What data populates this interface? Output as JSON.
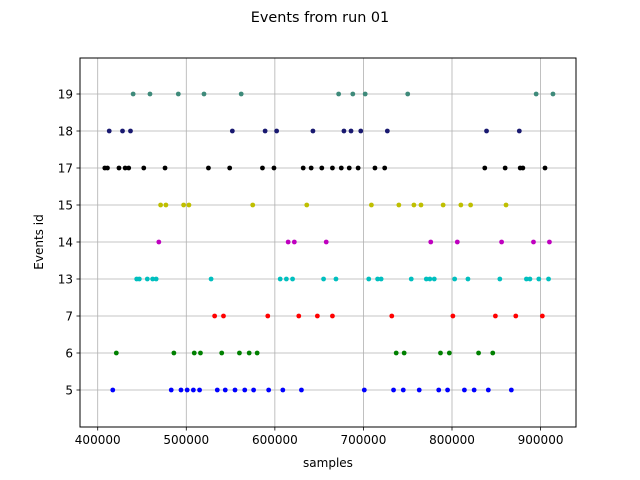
{
  "chart_data": {
    "type": "scatter",
    "title": "Events from run 01",
    "xlabel": "samples",
    "ylabel": "Events id",
    "xlim": [
      380000,
      940000
    ],
    "x_ticks": [
      400000,
      500000,
      600000,
      700000,
      800000,
      900000
    ],
    "x_tick_labels": [
      "400000",
      "500000",
      "600000",
      "700000",
      "800000",
      "900000"
    ],
    "categories": [
      "5",
      "6",
      "7",
      "13",
      "14",
      "15",
      "17",
      "18",
      "19"
    ],
    "grid": true,
    "series": [
      {
        "color": "#0000ff",
        "y": "5",
        "x": [
          417000,
          483000,
          494000,
          501000,
          508000,
          515000,
          535000,
          544000,
          555000,
          566000,
          576000,
          593000,
          609000,
          630000,
          701000,
          734000,
          745000,
          763000,
          785000,
          795000,
          814000,
          825000,
          841000,
          867000
        ]
      },
      {
        "color": "#008000",
        "y": "6",
        "x": [
          421000,
          486000,
          509000,
          516000,
          540000,
          560000,
          571000,
          580000,
          737000,
          746000,
          787000,
          797000,
          830000,
          846000
        ]
      },
      {
        "color": "#ff0000",
        "y": "7",
        "x": [
          532000,
          542000,
          592000,
          627000,
          648000,
          665000,
          732000,
          801000,
          849000,
          872000,
          902000
        ]
      },
      {
        "color": "#00bfbf",
        "y": "13",
        "x": [
          444000,
          447000,
          456000,
          462000,
          466000,
          528000,
          606000,
          613000,
          620000,
          655000,
          669000,
          706000,
          716000,
          720000,
          754000,
          771000,
          775000,
          780000,
          803000,
          818000,
          854000,
          884000,
          888000,
          898000,
          909000
        ]
      },
      {
        "color": "#bf00bf",
        "y": "14",
        "x": [
          469000,
          615000,
          622000,
          658000,
          776000,
          806000,
          856000,
          892000,
          910000
        ]
      },
      {
        "color": "#bfbf00",
        "y": "15",
        "x": [
          471000,
          477000,
          497000,
          503000,
          575000,
          636000,
          709000,
          740000,
          757000,
          765000,
          790000,
          810000,
          821000,
          861000
        ]
      },
      {
        "color": "#000000",
        "y": "17",
        "x": [
          408000,
          411000,
          424000,
          431000,
          435000,
          452000,
          476000,
          525000,
          549000,
          586000,
          599000,
          632000,
          641000,
          653000,
          665000,
          675000,
          684000,
          694000,
          713000,
          724000,
          837000,
          860000,
          877000,
          880000,
          905000
        ]
      },
      {
        "color": "#191970",
        "y": "18",
        "x": [
          413000,
          428000,
          437000,
          552000,
          589000,
          602000,
          643000,
          678000,
          686000,
          697000,
          727000,
          839000,
          876000
        ]
      },
      {
        "color": "#3e8a7a",
        "y": "19",
        "x": [
          440000,
          459000,
          491000,
          520000,
          562000,
          672000,
          688000,
          702000,
          750000,
          895000,
          914000
        ]
      }
    ]
  }
}
